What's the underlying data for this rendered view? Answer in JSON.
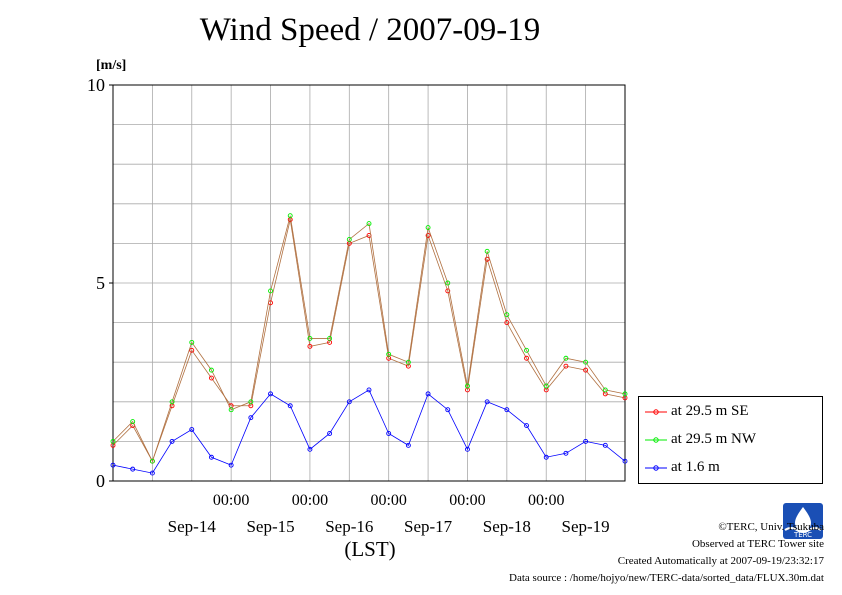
{
  "title": "Wind Speed / 2007-09-19",
  "unit_label": "[m/s]",
  "x_unit_label": "(LST)",
  "footer": {
    "copyright": "©TERC, Univ. Tsukuba",
    "observed": "Observed at TERC Tower site",
    "created": "Created Automatically at 2007-09-19/23:32:17",
    "source": "Data source : /home/hojyo/new/TERC-data/sorted_data/FLUX.30m.dat",
    "logo_text": "TERC"
  },
  "chart_data": {
    "type": "line",
    "title": "Wind Speed / 2007-09-19",
    "ylabel": "[m/s]",
    "xlabel": "(LST)",
    "ylim": [
      0,
      10
    ],
    "y_ticks": [
      0,
      5,
      10
    ],
    "x_range_days": [
      "2007-09-13 12:00",
      "2007-09-19 24:00"
    ],
    "x_time_ticks": [
      "00:00",
      "00:00",
      "00:00",
      "00:00",
      "00:00"
    ],
    "x_day_labels": [
      "Sep-14",
      "Sep-15",
      "Sep-16",
      "Sep-17",
      "Sep-18",
      "Sep-19"
    ],
    "grid": true,
    "legend_position": "bottom-right outside",
    "time_hours_from_start": [
      0,
      6,
      12,
      18,
      24,
      30,
      36,
      42,
      48,
      54,
      60,
      66,
      72,
      78,
      84,
      90,
      96,
      102,
      108,
      114,
      120,
      126,
      132,
      138,
      144,
      150,
      156
    ],
    "series": [
      {
        "name": "at 29.5 m SE",
        "color": "#ff0000",
        "values": [
          0.9,
          1.4,
          0.5,
          1.9,
          3.3,
          2.6,
          1.9,
          1.9,
          4.5,
          6.6,
          3.4,
          3.5,
          6.0,
          6.2,
          3.1,
          2.9,
          6.2,
          4.8,
          2.3,
          5.6,
          4.0,
          3.1,
          2.3,
          2.9,
          2.8,
          2.2,
          2.1
        ]
      },
      {
        "name": "at 29.5 m NW",
        "color": "#00ee00",
        "values": [
          1.0,
          1.5,
          0.5,
          2.0,
          3.5,
          2.8,
          1.8,
          2.0,
          4.8,
          6.7,
          3.6,
          3.6,
          6.1,
          6.5,
          3.2,
          3.0,
          6.4,
          5.0,
          2.4,
          5.8,
          4.2,
          3.3,
          2.4,
          3.1,
          3.0,
          2.3,
          2.2
        ]
      },
      {
        "name": "at 1.6 m",
        "color": "#0000ff",
        "values": [
          0.4,
          0.3,
          0.2,
          1.0,
          1.3,
          0.6,
          0.4,
          1.6,
          2.2,
          1.9,
          0.8,
          1.2,
          2.0,
          2.3,
          1.2,
          0.9,
          2.2,
          1.8,
          0.8,
          2.0,
          1.8,
          1.4,
          0.6,
          0.7,
          1.0,
          0.9,
          0.5
        ]
      }
    ]
  }
}
